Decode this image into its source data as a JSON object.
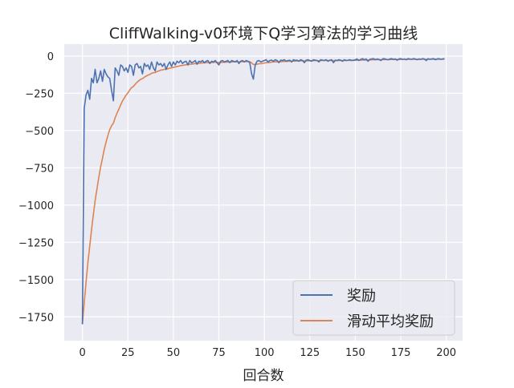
{
  "chart_data": {
    "type": "line",
    "title": "CliffWalking-v0环境下Q学习算法的学习曲线",
    "xlabel": "回合数",
    "ylabel": "",
    "xlim": [
      -10,
      209
    ],
    "ylim": [
      -1910,
      80
    ],
    "xticks": [
      0,
      25,
      50,
      75,
      100,
      125,
      150,
      175,
      200
    ],
    "yticks": [
      0,
      -250,
      -500,
      -750,
      -1000,
      -1250,
      -1500,
      -1750
    ],
    "ytick_labels": [
      "0",
      "−250",
      "−500",
      "−750",
      "−1000",
      "−1250",
      "−1500",
      "−1750"
    ],
    "grid": true,
    "legend_placement": "lower-right",
    "series": [
      {
        "name": "奖励",
        "color": "#4c72b0",
        "values": [
          -1800,
          -350,
          -260,
          -230,
          -290,
          -150,
          -180,
          -90,
          -180,
          -150,
          -100,
          -170,
          -90,
          -120,
          -140,
          -150,
          -230,
          -300,
          -80,
          -100,
          -130,
          -60,
          -70,
          -100,
          -80,
          -110,
          -60,
          -70,
          -130,
          -60,
          -50,
          -80,
          -70,
          -120,
          -50,
          -70,
          -60,
          -90,
          -40,
          -80,
          -100,
          -40,
          -60,
          -50,
          -70,
          -50,
          -90,
          -60,
          -40,
          -70,
          -40,
          -60,
          -35,
          -45,
          -30,
          -50,
          -40,
          -35,
          -60,
          -30,
          -45,
          -40,
          -30,
          -55,
          -35,
          -40,
          -30,
          -45,
          -35,
          -30,
          -50,
          -35,
          -40,
          -30,
          -45,
          -60,
          -35,
          -30,
          -40,
          -35,
          -30,
          -45,
          -30,
          -35,
          -40,
          -30,
          -50,
          -35,
          -30,
          -40,
          -30,
          -35,
          -45,
          -120,
          -155,
          -60,
          -35,
          -30,
          -40,
          -35,
          -30,
          -25,
          -40,
          -30,
          -28,
          -35,
          -25,
          -30,
          -45,
          -28,
          -30,
          -25,
          -35,
          -30,
          -28,
          -40,
          -25,
          -30,
          -28,
          -35,
          -25,
          -30,
          -45,
          -28,
          -25,
          -30,
          -35,
          -25,
          -28,
          -30,
          -40,
          -25,
          -28,
          -30,
          -25,
          -35,
          -28,
          -25,
          -45,
          -28,
          -30,
          -25,
          -28,
          -35,
          -25,
          -30,
          -28,
          -25,
          -30,
          -28,
          -25,
          -20,
          -30,
          -22,
          -18,
          -25,
          -20,
          -35,
          -22,
          -20,
          -18,
          -25,
          -20,
          -22,
          -30,
          -20,
          -18,
          -22,
          -25,
          -20,
          -18,
          -22,
          -20,
          -28,
          -20,
          -18,
          -22,
          -20,
          -25,
          -18,
          -20,
          -22,
          -18,
          -20,
          -25,
          -20,
          -22,
          -18,
          -20,
          -30,
          -18,
          -22,
          -20,
          -18,
          -25,
          -20,
          -18,
          -22,
          -20,
          -18
        ]
      },
      {
        "name": "滑动平均奖励",
        "color": "#dd8452",
        "values": [
          -1800,
          -1655,
          -1516,
          -1387,
          -1277,
          -1164,
          -1066,
          -968,
          -889,
          -815,
          -744,
          -686,
          -626,
          -576,
          -532,
          -494,
          -468,
          -451,
          -414,
          -383,
          -358,
          -328,
          -302,
          -282,
          -262,
          -247,
          -228,
          -212,
          -204,
          -190,
          -176,
          -166,
          -156,
          -152,
          -142,
          -135,
          -128,
          -124,
          -116,
          -112,
          -111,
          -104,
          -100,
          -95,
          -93,
          -89,
          -89,
          -86,
          -81,
          -80,
          -76,
          -74,
          -70,
          -68,
          -64,
          -63,
          -61,
          -58,
          -58,
          -55,
          -54,
          -53,
          -50,
          -51,
          -49,
          -48,
          -46,
          -46,
          -45,
          -43,
          -44,
          -43,
          -43,
          -41,
          -42,
          -44,
          -43,
          -42,
          -42,
          -41,
          -40,
          -41,
          -40,
          -39,
          -39,
          -38,
          -40,
          -39,
          -38,
          -38,
          -37,
          -37,
          -38,
          -46,
          -57,
          -57,
          -55,
          -52,
          -51,
          -49,
          -47,
          -45,
          -44,
          -43,
          -41,
          -40,
          -39,
          -38,
          -39,
          -38,
          -37,
          -36,
          -36,
          -35,
          -35,
          -35,
          -34,
          -34,
          -33,
          -33,
          -32,
          -32,
          -33,
          -33,
          -32,
          -32,
          -32,
          -31,
          -31,
          -31,
          -32,
          -31,
          -30,
          -30,
          -30,
          -30,
          -30,
          -30,
          -31,
          -31,
          -31,
          -30,
          -30,
          -30,
          -30,
          -30,
          -29,
          -29,
          -29,
          -29,
          -29,
          -28,
          -28,
          -28,
          -27,
          -27,
          -26,
          -27,
          -26,
          -26,
          -25,
          -25,
          -25,
          -25,
          -25,
          -25,
          -24,
          -24,
          -24,
          -24,
          -23,
          -23,
          -23,
          -23,
          -23,
          -23,
          -22,
          -22,
          -22,
          -22,
          -22,
          -22,
          -22,
          -21,
          -22,
          -22,
          -22,
          -21,
          -21,
          -22,
          -21,
          -21,
          -21,
          -21,
          -21,
          -21,
          -21,
          -21,
          -21,
          -21
        ]
      }
    ]
  }
}
